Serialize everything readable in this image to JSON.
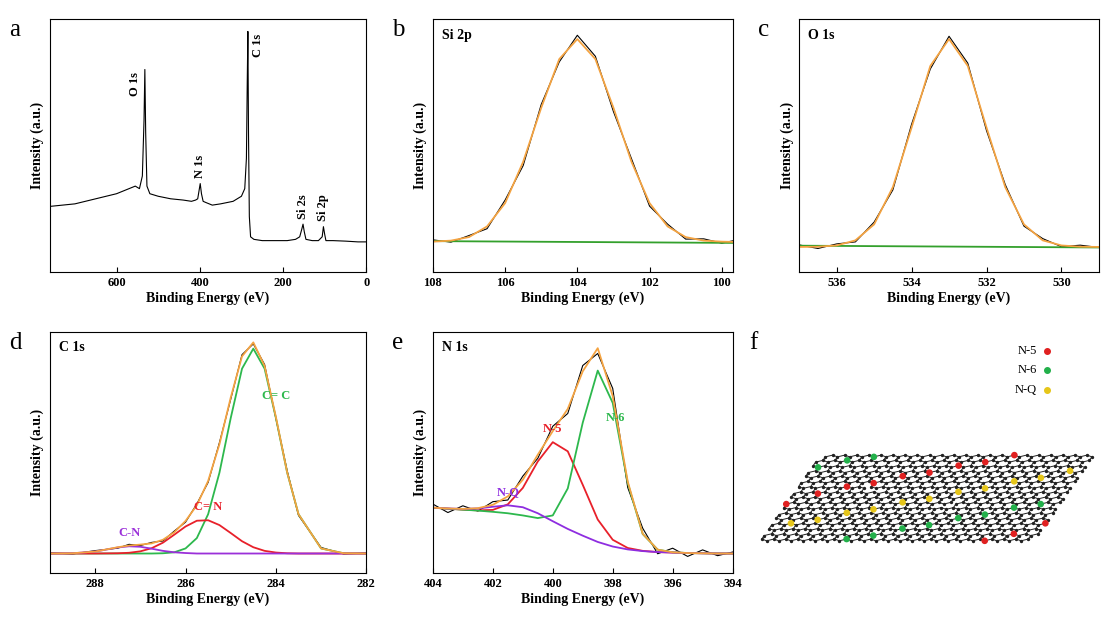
{
  "chart_data": [
    {
      "type": "line",
      "panel_label": "a",
      "x_label": "Binding Energy (eV)",
      "y_label": "Intensity (a.u.)",
      "xlim": [
        760,
        0
      ],
      "xticks": [
        600,
        400,
        200,
        0
      ],
      "ylim": [
        0,
        100
      ],
      "tick_labels": "x",
      "series": [
        {
          "color": "#000000",
          "x": [
            760,
            700,
            650,
            600,
            570,
            555,
            545,
            538,
            534,
            532,
            530,
            527,
            520,
            500,
            470,
            440,
            420,
            410,
            405,
            402,
            399,
            396,
            392,
            385,
            370,
            350,
            320,
            300,
            292,
            288,
            286,
            284.5,
            283,
            281,
            278,
            270,
            250,
            220,
            190,
            170,
            160,
            155,
            152,
            149,
            145,
            130,
            115,
            106,
            103,
            100,
            97,
            80,
            50,
            20,
            0
          ],
          "values": [
            26,
            27,
            29,
            31,
            33,
            34,
            33,
            38,
            60,
            80,
            55,
            34,
            31,
            30,
            29,
            28.5,
            28,
            28.5,
            29,
            32,
            35,
            31,
            28,
            27.5,
            26.5,
            27,
            28,
            30,
            33,
            45,
            75,
            95,
            55,
            22,
            14,
            13,
            12.5,
            12.5,
            12.5,
            13,
            14,
            17,
            19,
            16,
            13,
            12.5,
            12.5,
            14,
            18,
            15,
            12.5,
            12.5,
            12.3,
            12,
            12
          ]
        }
      ],
      "annotations": [
        {
          "text": "O 1s",
          "x": 532
        },
        {
          "text": "N 1s",
          "x": 399
        },
        {
          "text": "C 1s",
          "x": 284.5
        },
        {
          "text": "Si 2s",
          "x": 152
        },
        {
          "text": "Si 2p",
          "x": 103
        }
      ]
    },
    {
      "type": "line",
      "panel_label": "b",
      "title": "Si 2p",
      "x_label": "Binding Energy (eV)",
      "y_label": "Intensity (a.u.)",
      "xlim": [
        108,
        99.7
      ],
      "xticks": [
        108,
        106,
        104,
        102,
        100
      ],
      "ylim": [
        0,
        100
      ],
      "tick_labels": "x",
      "series": [
        {
          "color": "#000000",
          "x": [
            108,
            107.5,
            107,
            106.5,
            106,
            105.5,
            105,
            104.5,
            104,
            103.5,
            103,
            102.5,
            102,
            101.5,
            101,
            100.5,
            100,
            99.7
          ],
          "values": [
            12.8,
            11.9,
            14.5,
            17.2,
            28.5,
            42.1,
            66.2,
            83.0,
            93.5,
            85.2,
            63.4,
            44.8,
            26.1,
            19.0,
            13.1,
            13.2,
            11.5,
            12.4
          ]
        },
        {
          "color": "#33a02c",
          "x": [
            108,
            99.7
          ],
          "values": [
            12.3,
            11.6
          ]
        },
        {
          "color": "#f4a341",
          "x": [
            108,
            107.5,
            107,
            106.5,
            106,
            105.5,
            105,
            104.5,
            104,
            103.5,
            103,
            102.5,
            102,
            101.5,
            101,
            100.5,
            100,
            99.7
          ],
          "values": [
            12.1,
            12.5,
            13.9,
            18.1,
            27.3,
            43.6,
            64.9,
            84.1,
            92,
            84.1,
            64.9,
            43.6,
            27.3,
            18.1,
            13.9,
            12.5,
            12.1,
            12.0
          ]
        }
      ]
    },
    {
      "type": "line",
      "panel_label": "c",
      "title": "O 1s",
      "x_label": "Binding Energy (eV)",
      "y_label": "Intensity (a.u.)",
      "xlim": [
        537,
        529
      ],
      "xticks": [
        536,
        534,
        532,
        530
      ],
      "ylim": [
        0,
        100
      ],
      "tick_labels": "x",
      "series": [
        {
          "color": "#000000",
          "x": [
            537,
            536.5,
            536,
            535.5,
            535,
            534.5,
            534,
            533.5,
            533,
            532.5,
            532,
            531.5,
            531,
            530.5,
            530,
            529.5,
            529
          ],
          "values": [
            10.8,
            9.4,
            11.2,
            12.0,
            19.8,
            32.5,
            58.4,
            80.2,
            93.1,
            82.5,
            55.9,
            34.6,
            18.2,
            13.3,
            10.1,
            10.7,
            9.8
          ]
        },
        {
          "color": "#33a02c",
          "x": [
            537,
            529
          ],
          "values": [
            10.5,
            9.8
          ]
        },
        {
          "color": "#f4a341",
          "x": [
            537,
            536.5,
            536,
            535.5,
            535,
            534.5,
            534,
            533.5,
            533,
            532.5,
            532,
            531.5,
            531,
            530.5,
            530,
            529.5,
            529
          ],
          "values": [
            10,
            10.1,
            10.6,
            12.6,
            18.9,
            33.6,
            57.1,
            81.4,
            92,
            81.4,
            57.1,
            33.6,
            18.9,
            12.6,
            10.6,
            10.1,
            10
          ]
        }
      ]
    },
    {
      "type": "line",
      "panel_label": "d",
      "title": "C 1s",
      "x_label": "Binding Energy (eV)",
      "y_label": "Intensity (a.u.)",
      "xlim": [
        289,
        282
      ],
      "xticks": [
        288,
        286,
        284,
        282
      ],
      "ylim": [
        0,
        100
      ],
      "tick_labels": "x",
      "series": [
        {
          "color": "#000000",
          "x": [
            289,
            288.5,
            288,
            287.5,
            287.25,
            287,
            286.75,
            286.5,
            286.25,
            286,
            285.75,
            285.5,
            285.25,
            285,
            284.75,
            284.5,
            284.25,
            284,
            283.75,
            283.5,
            283,
            282.5,
            282
          ],
          "values": [
            8.3,
            7.8,
            9.2,
            10.2,
            11.8,
            11.3,
            12.6,
            13.2,
            17.3,
            21.0,
            28.6,
            37.5,
            54.0,
            72.0,
            90.5,
            95.0,
            86.4,
            64.0,
            42.3,
            23.8,
            10.5,
            7.8,
            8.2
          ]
        },
        {
          "name": "C= C",
          "color": "#2db84d",
          "x": [
            289,
            288.5,
            288,
            287.5,
            287.25,
            287,
            286.75,
            286.5,
            286.25,
            286,
            285.75,
            285.5,
            285.25,
            285,
            284.75,
            284.5,
            284.25,
            284,
            283.75,
            283.5,
            283,
            282.5,
            282
          ],
          "values": [
            8,
            8,
            8,
            8,
            8,
            8,
            8.0,
            8.1,
            8.5,
            10.1,
            14.4,
            24.3,
            41.5,
            64.2,
            84.7,
            93,
            84.7,
            64.2,
            41.5,
            24.3,
            10.1,
            8.1,
            8
          ]
        },
        {
          "name": "C= N",
          "color": "#e8202a",
          "x": [
            289,
            288.5,
            288,
            287.5,
            287.25,
            287,
            286.75,
            286.5,
            286.25,
            286,
            285.75,
            285.5,
            285.25,
            285,
            284.75,
            284.5,
            284.25,
            284,
            283.75,
            283.5,
            283,
            282.5,
            282
          ],
          "values": [
            8,
            8,
            8,
            8.1,
            8.3,
            8.9,
            10.2,
            12.5,
            15.8,
            19.2,
            21.6,
            21.8,
            19.8,
            16.5,
            13.1,
            10.6,
            9.1,
            8.4,
            8.1,
            8,
            8,
            8,
            8
          ]
        },
        {
          "name": "C-N",
          "color": "#9b30d9",
          "x": [
            289,
            288.5,
            288,
            287.5,
            287.25,
            287,
            286.75,
            286.5,
            286.25,
            286,
            285.75,
            285.5,
            285.25,
            285,
            284.75,
            284.5,
            284.25,
            284,
            283.75,
            283.5,
            283,
            282.5,
            282
          ],
          "values": [
            8,
            8.1,
            8.8,
            10.5,
            11,
            10.8,
            10,
            9.1,
            8.5,
            8.2,
            8,
            8,
            8,
            8,
            8,
            8,
            8,
            8,
            8,
            8,
            8,
            8,
            8
          ]
        },
        {
          "color": "#f4a341",
          "x": [
            289,
            288.5,
            288,
            287.5,
            287.25,
            287,
            286.75,
            286.5,
            286.25,
            286,
            285.75,
            285.5,
            285.25,
            285,
            284.75,
            284.5,
            284.25,
            284,
            283.75,
            283.5,
            283,
            282.5,
            282
          ],
          "values": [
            8,
            8.1,
            8.8,
            10.6,
            11.3,
            11.7,
            12.2,
            13.7,
            16.8,
            21.5,
            28.0,
            38.1,
            53.3,
            72.7,
            89.8,
            95.6,
            85.8,
            64.6,
            41.6,
            24.3,
            10.1,
            8.1,
            8
          ]
        }
      ]
    },
    {
      "type": "line",
      "panel_label": "e",
      "title": "N 1s",
      "x_label": "Binding Energy (eV)",
      "y_label": "Intensity (a.u.)",
      "xlim": [
        404,
        394
      ],
      "xticks": [
        404,
        402,
        400,
        398,
        396,
        394
      ],
      "ylim": [
        0,
        100
      ],
      "tick_labels": "x",
      "series": [
        {
          "color": "#000000",
          "x": [
            404,
            403.5,
            403,
            402.5,
            402,
            401.5,
            401,
            400.5,
            400,
            399.5,
            399,
            398.5,
            398,
            397.5,
            397,
            396.5,
            396,
            395.5,
            395,
            394.5,
            394
          ],
          "values": [
            28.5,
            25.0,
            27.8,
            25.6,
            29.5,
            30.2,
            40.1,
            47.5,
            60.8,
            66.1,
            86.0,
            91.0,
            76.5,
            35.4,
            18.5,
            7.9,
            10.2,
            6.8,
            9.5,
            7.1,
            8.6
          ]
        },
        {
          "name": "N-5",
          "color": "#e8202a",
          "x": [
            404,
            403.5,
            403,
            402.5,
            402,
            401.5,
            401,
            400.5,
            400,
            399.5,
            399,
            398.5,
            398,
            397.5,
            397,
            396.5,
            396,
            395.5,
            395,
            394.5,
            394
          ],
          "values": [
            27,
            26.6,
            26.2,
            25.9,
            26.1,
            28.4,
            35.2,
            46.2,
            54.2,
            50.4,
            36.5,
            22.1,
            13.7,
            10.3,
            9.1,
            8.6,
            8.4,
            8.2,
            8.1,
            8.0,
            8.0
          ]
        },
        {
          "name": "N-6",
          "color": "#2db84d",
          "x": [
            404,
            403.5,
            403,
            402.5,
            402,
            401.5,
            401,
            400.5,
            400,
            399.5,
            399,
            398.5,
            398,
            397.5,
            397,
            396.5,
            396,
            395.5,
            395,
            394.5,
            394
          ],
          "values": [
            27,
            26.6,
            26.2,
            25.8,
            25.3,
            24.7,
            23.8,
            22.7,
            23.8,
            35.0,
            62.3,
            83.9,
            70.5,
            37.3,
            16.1,
            9.6,
            8.5,
            8.2,
            8.1,
            8.0,
            8.0
          ]
        },
        {
          "name": "N-Q",
          "color": "#8e2de0",
          "x": [
            404,
            403.5,
            403,
            402.5,
            402,
            401.5,
            401,
            400.5,
            400,
            399.5,
            399,
            398.5,
            398,
            397.5,
            397,
            396.5,
            396,
            395.5,
            395,
            394.5,
            394
          ],
          "values": [
            27,
            26.7,
            26.5,
            26.7,
            27.4,
            28.0,
            27.2,
            24.7,
            21.4,
            18.2,
            15.4,
            12.8,
            10.9,
            9.7,
            9.0,
            8.6,
            8.4,
            8.2,
            8.1,
            8.0,
            8.0
          ]
        },
        {
          "color": "#f4a341",
          "x": [
            404,
            403.5,
            403,
            402.5,
            402,
            401.5,
            401,
            400.5,
            400,
            399.5,
            399,
            398.5,
            398,
            397.5,
            397,
            396.5,
            396,
            395.5,
            395,
            394.5,
            394
          ],
          "values": [
            27,
            26.7,
            26.5,
            26.8,
            28.2,
            31.7,
            38.6,
            49.0,
            58.8,
            68.0,
            83.6,
            93.2,
            73.3,
            37.9,
            16.2,
            9.6,
            8.5,
            8.2,
            8.1,
            8.0,
            8.0
          ]
        }
      ]
    }
  ],
  "diagram": {
    "panel_label": "f",
    "legend": [
      {
        "name": "N-5",
        "color": "#e02020"
      },
      {
        "name": "N-6",
        "color": "#22b04a"
      },
      {
        "name": "N-Q",
        "color": "#e6c619"
      }
    ]
  }
}
